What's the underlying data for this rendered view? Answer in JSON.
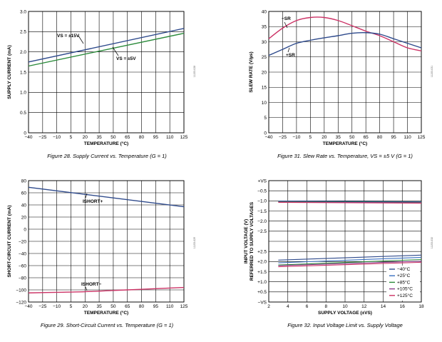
{
  "chart_data": [
    {
      "id": "fig28",
      "type": "line",
      "title": "Figure 28. Supply Current vs. Temperature (G = 1)",
      "xlabel": "TEMPERATURE (°C)",
      "ylabel": "SUPPLY CURRENT (mA)",
      "figure_id": "11153-028",
      "xlim": [
        -40,
        125
      ],
      "ylim": [
        0,
        3.0
      ],
      "xticks": [
        "−40",
        "−25",
        "−10",
        "5",
        "20",
        "35",
        "50",
        "65",
        "80",
        "95",
        "110",
        "125"
      ],
      "yticks": [
        "0",
        "0.5",
        "1.0",
        "1.5",
        "2.0",
        "2.5",
        "3.0"
      ],
      "series": [
        {
          "name": "VS = ±15V",
          "color": "#2e4a8c",
          "x": [
            -40,
            125
          ],
          "y": [
            1.75,
            2.58
          ]
        },
        {
          "name": "VS = ±5V",
          "color": "#2a8a3a",
          "x": [
            -40,
            125
          ],
          "y": [
            1.65,
            2.46
          ]
        }
      ],
      "annotations": [
        {
          "text": "VS = ±15V"
        },
        {
          "text": "VS = ±5V"
        }
      ]
    },
    {
      "id": "fig29",
      "type": "line",
      "title": "Figure 29. Short-Circuit Current vs. Temperature (G = 1)",
      "xlabel": "TEMPERATURE (°C)",
      "ylabel": "SHORT-CIRCUIT CURRENT (mA)",
      "figure_id": "11153-029",
      "xlim": [
        -40,
        125
      ],
      "ylim": [
        -120,
        80
      ],
      "xticks": [
        "−40",
        "−25",
        "−10",
        "5",
        "20",
        "35",
        "50",
        "65",
        "80",
        "95",
        "110",
        "125"
      ],
      "yticks": [
        "−120",
        "−100",
        "−80",
        "−60",
        "−40",
        "−20",
        "0",
        "20",
        "40",
        "60",
        "80"
      ],
      "series": [
        {
          "name": "ISHORT+",
          "color": "#2e4a8c",
          "x": [
            -40,
            125
          ],
          "y": [
            69,
            37
          ]
        },
        {
          "name": "ISHORT−",
          "color": "#cc3366",
          "x": [
            -40,
            -10,
            20,
            50,
            80,
            110,
            125
          ],
          "y": [
            -105,
            -104,
            -103,
            -101,
            -99,
            -97,
            -96
          ]
        }
      ],
      "annotations": [
        {
          "text": "ISHORT+"
        },
        {
          "text": "ISHORT−"
        }
      ]
    },
    {
      "id": "fig31",
      "type": "line",
      "title": "Figure 31. Slew Rate vs. Temperature, VS = ±5 V (G = 1)",
      "xlabel": "TEMPERATURE (°C)",
      "ylabel": "SLEW RATE (V/µs)",
      "figure_id": "11153-031",
      "xlim": [
        -40,
        125
      ],
      "ylim": [
        0,
        40
      ],
      "xticks": [
        "−40",
        "−25",
        "−10",
        "5",
        "20",
        "35",
        "50",
        "65",
        "80",
        "95",
        "110",
        "125"
      ],
      "yticks": [
        "0",
        "5",
        "10",
        "15",
        "20",
        "25",
        "30",
        "35",
        "40"
      ],
      "series": [
        {
          "name": "−SR",
          "color": "#cc3366",
          "x": [
            -40,
            -25,
            -10,
            5,
            20,
            35,
            50,
            65,
            80,
            95,
            110,
            125
          ],
          "y": [
            31,
            34.5,
            37,
            38,
            38,
            37,
            35.3,
            33.5,
            32,
            30,
            28,
            27
          ]
        },
        {
          "name": "+SR",
          "color": "#2e4a8c",
          "x": [
            -40,
            -25,
            -10,
            5,
            20,
            35,
            50,
            65,
            80,
            95,
            110,
            125
          ],
          "y": [
            25.5,
            27.5,
            29.5,
            30.5,
            31.3,
            32,
            32.8,
            33,
            32.5,
            31,
            29.5,
            28
          ]
        }
      ],
      "annotations": [
        {
          "text": "−SR"
        },
        {
          "text": "+SR"
        }
      ]
    },
    {
      "id": "fig32",
      "type": "line",
      "title": "Figure 32. Input Voltage Limit vs. Supply Voltage",
      "xlabel": "SUPPLY VOLTAGE (±VS)",
      "ylabel": "INPUT VOLTAGE (V) REFERRED TO SUPPLY VOLTAGES",
      "figure_id": "11153-032",
      "xlim": [
        2,
        18
      ],
      "ylim": [
        0,
        11
      ],
      "xticks": [
        "2",
        "4",
        "6",
        "8",
        "10",
        "12",
        "14",
        "16",
        "18"
      ],
      "yticks": [
        "+VS",
        "−0.5",
        "−1.0",
        "−1.5",
        "−2.0",
        "−2.5",
        "",
        "+2.5",
        "+2.0",
        "+1.5",
        "+1.0",
        "+0.5",
        "−VS"
      ],
      "series": [
        {
          "name": "−40°C",
          "color": "#2e4a8c",
          "x": [
            3,
            18
          ],
          "top": [
            9.15,
            9.08
          ],
          "bottom": [
            3.8,
            4.25
          ]
        },
        {
          "name": "+25°C",
          "color": "#3a70c0",
          "x": [
            3,
            18
          ],
          "top": [
            9.12,
            9.06
          ],
          "bottom": [
            3.55,
            4.05
          ]
        },
        {
          "name": "+85°C",
          "color": "#2a8a3a",
          "x": [
            3,
            18
          ],
          "top": [
            9.1,
            9.03
          ],
          "bottom": [
            3.35,
            3.85
          ]
        },
        {
          "name": "+105°C",
          "color": "#8a3a8a",
          "x": [
            3,
            18
          ],
          "top": [
            9.06,
            9.0
          ],
          "bottom": [
            3.3,
            3.7
          ]
        },
        {
          "name": "+125°C",
          "color": "#cc3366",
          "x": [
            3,
            18
          ],
          "top": [
            9.03,
            8.96
          ],
          "bottom": [
            3.2,
            3.6
          ]
        }
      ],
      "legend": [
        "−40°C",
        "+25°C",
        "+85°C",
        "+105°C",
        "+125°C"
      ],
      "legend_position": "bottom-right"
    }
  ]
}
